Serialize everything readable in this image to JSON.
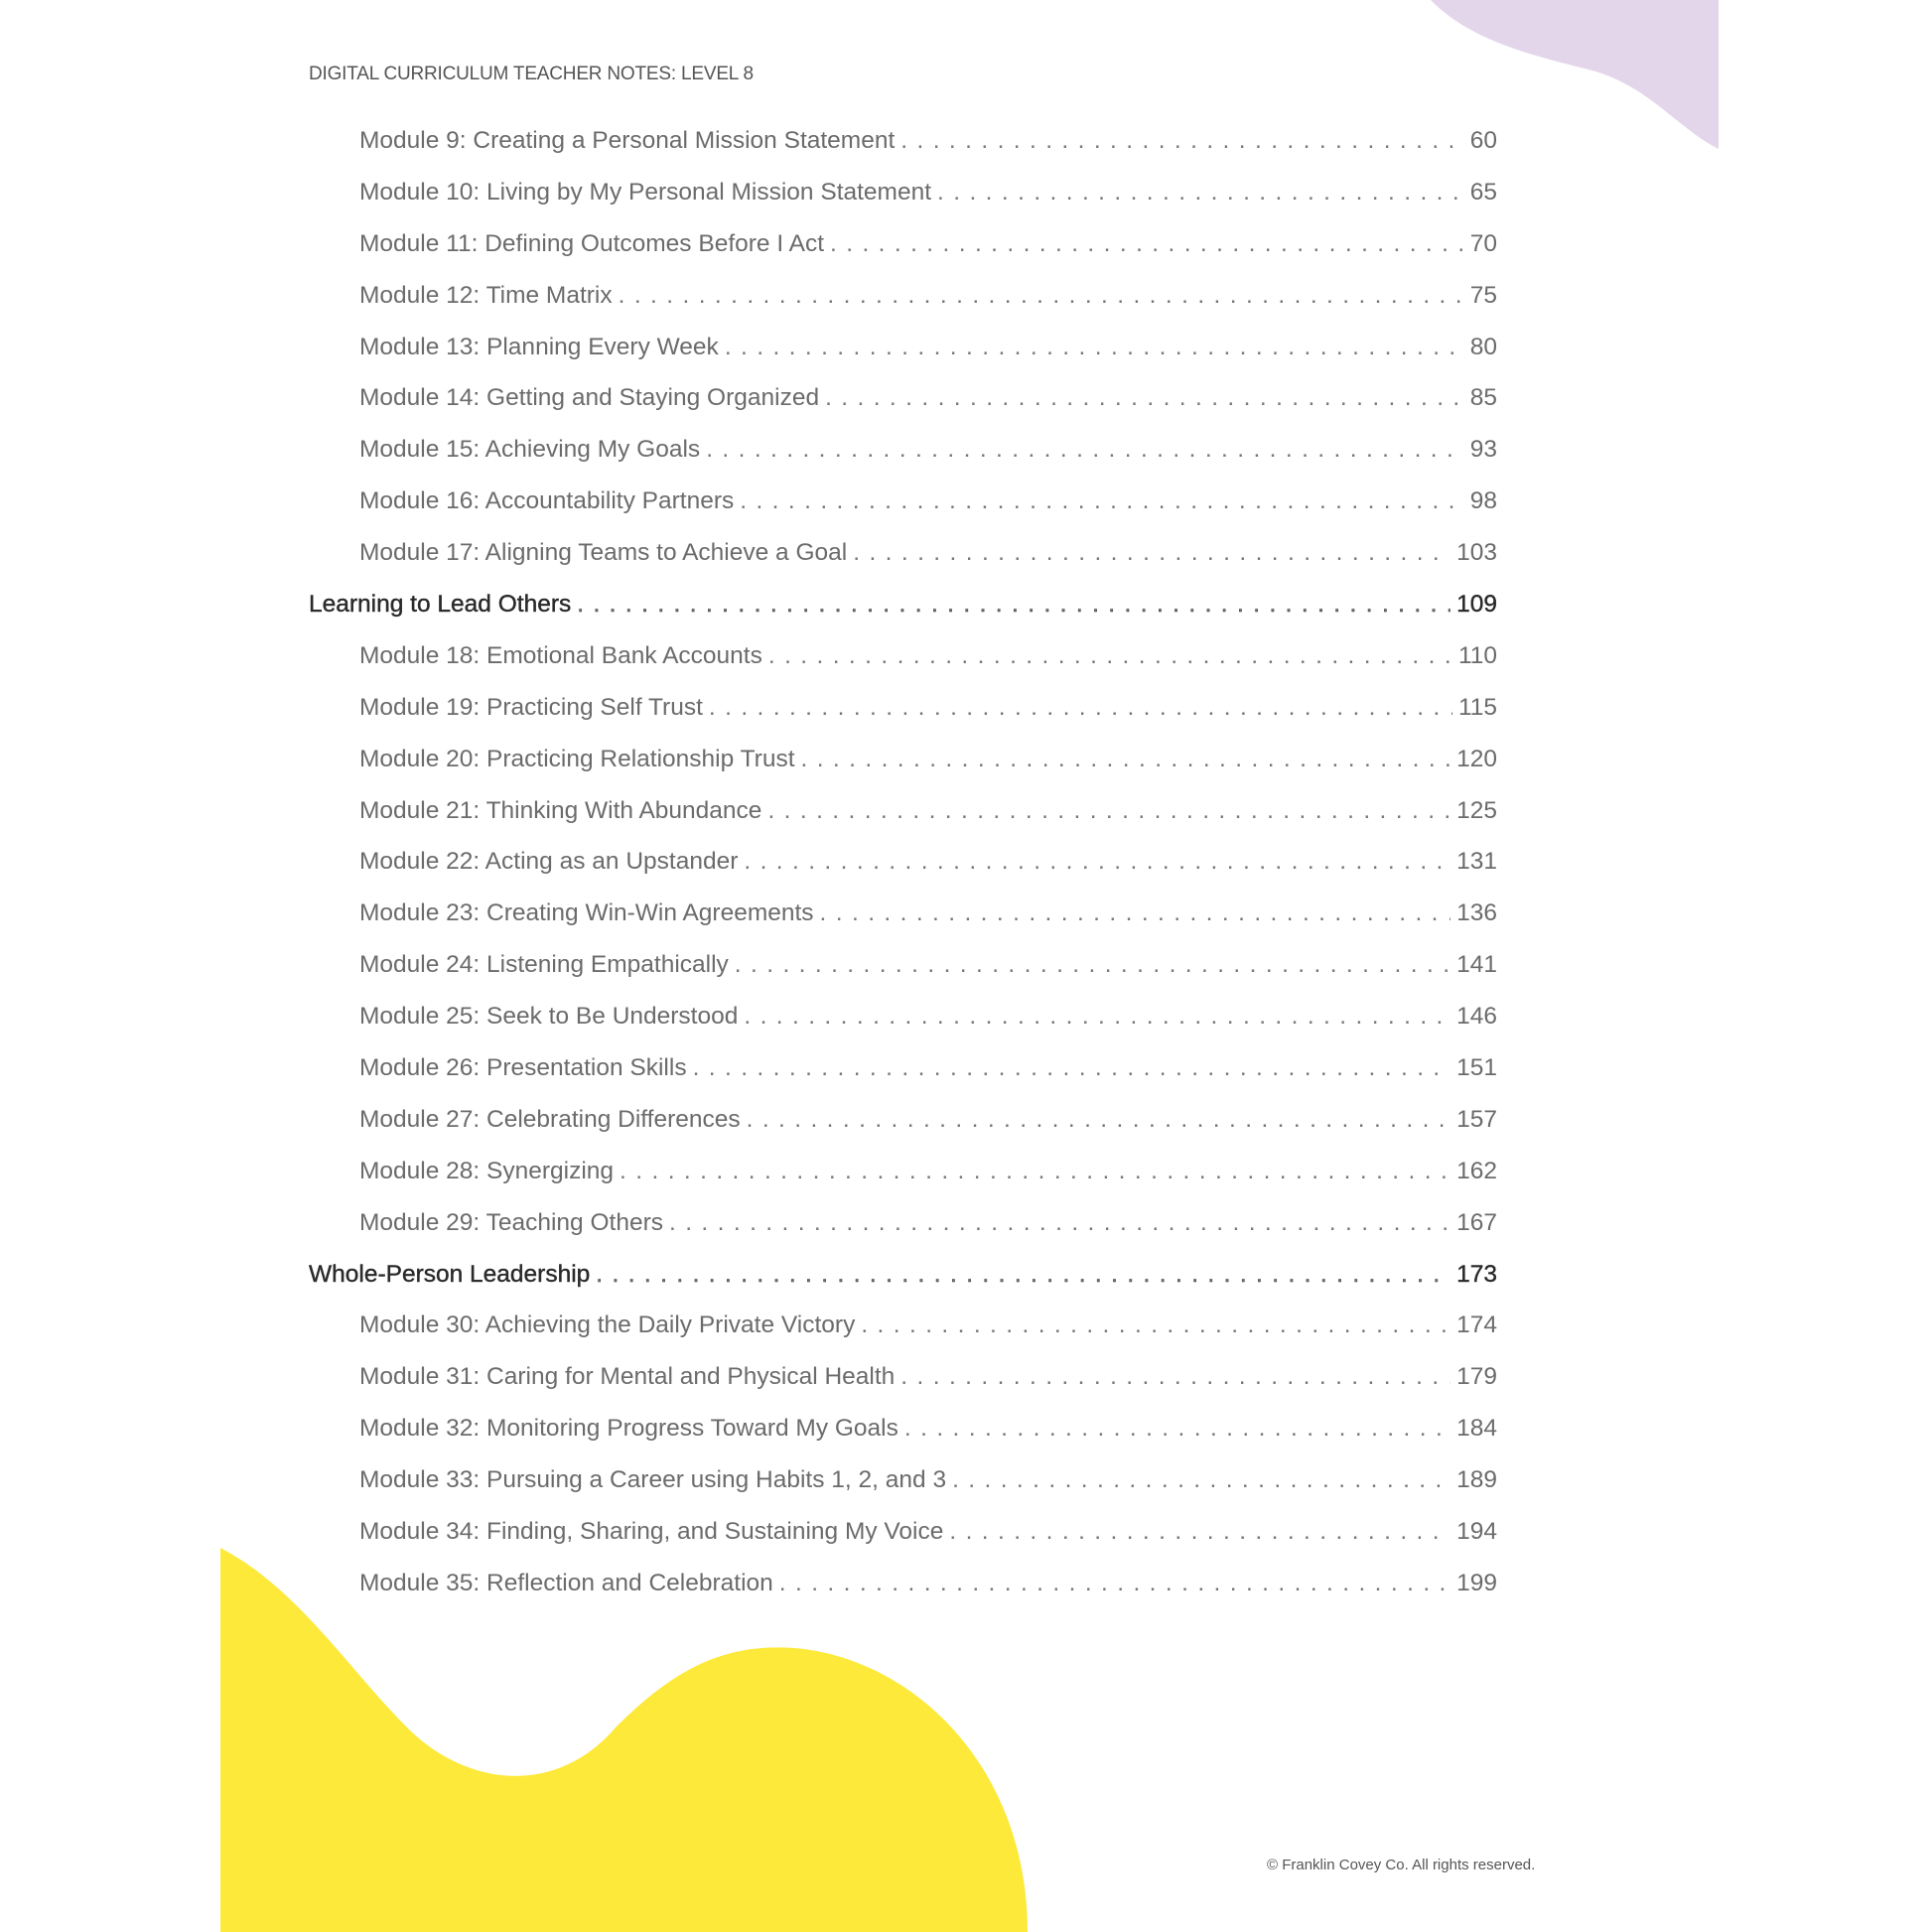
{
  "header": {
    "title": "DIGITAL CURRICULUM TEACHER NOTES: LEVEL 8"
  },
  "colors": {
    "yellow_blob": "#fde93a",
    "purple_blob": "#e4d6ea",
    "text": "#6b6b6b",
    "section_text": "#2a2a2a"
  },
  "toc": [
    {
      "type": "module",
      "title": "Module 9: Creating a Personal Mission Statement",
      "page": "60"
    },
    {
      "type": "module",
      "title": "Module 10: Living by My Personal Mission Statement",
      "page": "65"
    },
    {
      "type": "module",
      "title": "Module 11: Defining Outcomes Before I Act",
      "page": "70"
    },
    {
      "type": "module",
      "title": "Module 12: Time Matrix",
      "page": "75"
    },
    {
      "type": "module",
      "title": "Module 13: Planning Every Week",
      "page": "80"
    },
    {
      "type": "module",
      "title": "Module 14: Getting and Staying Organized",
      "page": "85"
    },
    {
      "type": "module",
      "title": "Module 15: Achieving My Goals",
      "page": "93"
    },
    {
      "type": "module",
      "title": "Module 16: Accountability Partners",
      "page": "98"
    },
    {
      "type": "module",
      "title": "Module 17: Aligning Teams to Achieve a Goal",
      "page": "103"
    },
    {
      "type": "section",
      "title": "Learning to Lead Others",
      "page": "109"
    },
    {
      "type": "module",
      "title": "Module 18: Emotional Bank Accounts",
      "page": "110"
    },
    {
      "type": "module",
      "title": "Module 19: Practicing Self Trust",
      "page": "115"
    },
    {
      "type": "module",
      "title": "Module 20: Practicing Relationship Trust",
      "page": "120"
    },
    {
      "type": "module",
      "title": "Module 21: Thinking With Abundance",
      "page": "125"
    },
    {
      "type": "module",
      "title": "Module 22: Acting as an Upstander",
      "page": "131"
    },
    {
      "type": "module",
      "title": "Module 23: Creating Win-Win Agreements",
      "page": "136"
    },
    {
      "type": "module",
      "title": "Module 24: Listening Empathically",
      "page": "141"
    },
    {
      "type": "module",
      "title": "Module 25: Seek to Be Understood",
      "page": "146"
    },
    {
      "type": "module",
      "title": "Module 26: Presentation Skills",
      "page": "151"
    },
    {
      "type": "module",
      "title": "Module 27: Celebrating Differences",
      "page": "157"
    },
    {
      "type": "module",
      "title": "Module 28: Synergizing",
      "page": "162"
    },
    {
      "type": "module",
      "title": "Module 29: Teaching Others",
      "page": "167"
    },
    {
      "type": "section",
      "title": "Whole-Person Leadership",
      "page": "173"
    },
    {
      "type": "module",
      "title": "Module 30: Achieving the Daily Private Victory",
      "page": "174"
    },
    {
      "type": "module",
      "title": "Module 31: Caring for Mental and Physical Health",
      "page": "179"
    },
    {
      "type": "module",
      "title": "Module 32: Monitoring Progress Toward My Goals",
      "page": "184"
    },
    {
      "type": "module",
      "title": "Module 33: Pursuing a Career using Habits 1, 2, and 3",
      "page": "189"
    },
    {
      "type": "module",
      "title": "Module 34: Finding, Sharing, and Sustaining My Voice",
      "page": "194"
    },
    {
      "type": "module",
      "title": "Module 35: Reflection and Celebration",
      "page": "199"
    }
  ],
  "footer": {
    "copyright": "© Franklin Covey Co. All rights reserved."
  }
}
